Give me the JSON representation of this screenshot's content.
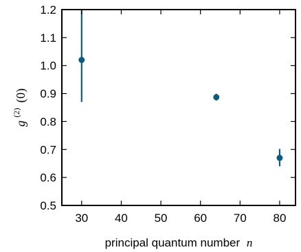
{
  "chart_data": {
    "type": "scatter",
    "xlabel": "principal quantum number",
    "xlabel_var": "n",
    "ylabel_base": "g",
    "ylabel_sup": "(2)",
    "ylabel_arg": "(0)",
    "xlim": [
      25,
      84
    ],
    "ylim": [
      0.5,
      1.2
    ],
    "xticks": [
      30,
      40,
      50,
      60,
      70,
      80
    ],
    "yticks": [
      0.5,
      0.6,
      0.7,
      0.8,
      0.9,
      1.0,
      1.1,
      1.2
    ],
    "ytick_labels": [
      "0.5",
      "0.6",
      "0.7",
      "0.8",
      "0.9",
      "1.0",
      "1.1",
      "1.2"
    ],
    "grid": false,
    "marker_color": "#0d5c7e",
    "points": [
      {
        "x": 30,
        "y": 1.02,
        "err_low": 0.87,
        "err_high": 1.2
      },
      {
        "x": 64,
        "y": 0.887,
        "err_low": 0.875,
        "err_high": 0.899
      },
      {
        "x": 80,
        "y": 0.67,
        "err_low": 0.64,
        "err_high": 0.702
      }
    ]
  }
}
